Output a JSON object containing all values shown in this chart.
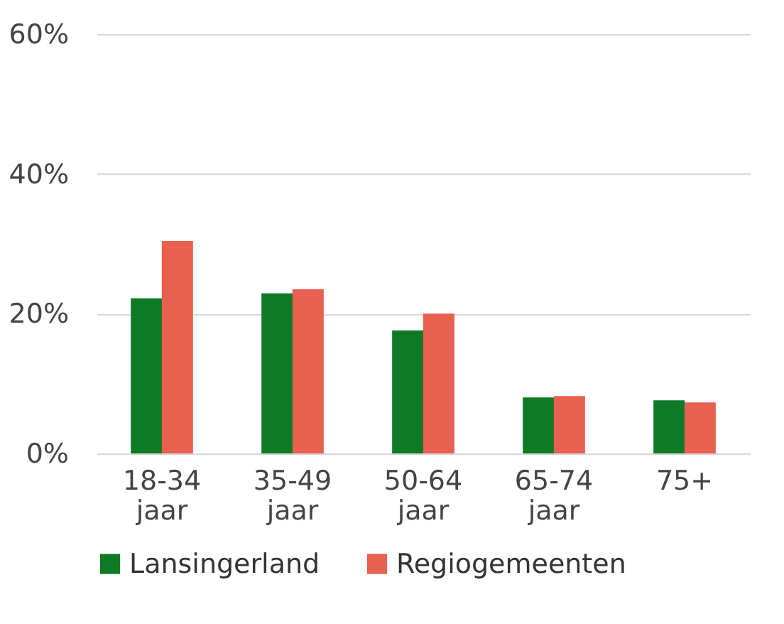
{
  "chart_data": {
    "type": "bar",
    "categories": [
      "18-34 jaar",
      "35-49 jaar",
      "50-64 jaar",
      "65-74 jaar",
      "75+"
    ],
    "series": [
      {
        "name": "Lansingerland",
        "color": "#0e7a26",
        "values": [
          22.2,
          22.9,
          17.6,
          8.0,
          7.6
        ]
      },
      {
        "name": "Regiogemeenten",
        "color": "#e8604f",
        "values": [
          30.4,
          23.5,
          20.0,
          8.2,
          7.3
        ]
      }
    ],
    "ylim": [
      0,
      60
    ],
    "yticks": [
      {
        "value": 0,
        "label": "0%"
      },
      {
        "value": 20,
        "label": "20%"
      },
      {
        "value": 40,
        "label": "40%"
      },
      {
        "value": 60,
        "label": "60%"
      }
    ],
    "grid": "y",
    "legend": "bottom"
  }
}
